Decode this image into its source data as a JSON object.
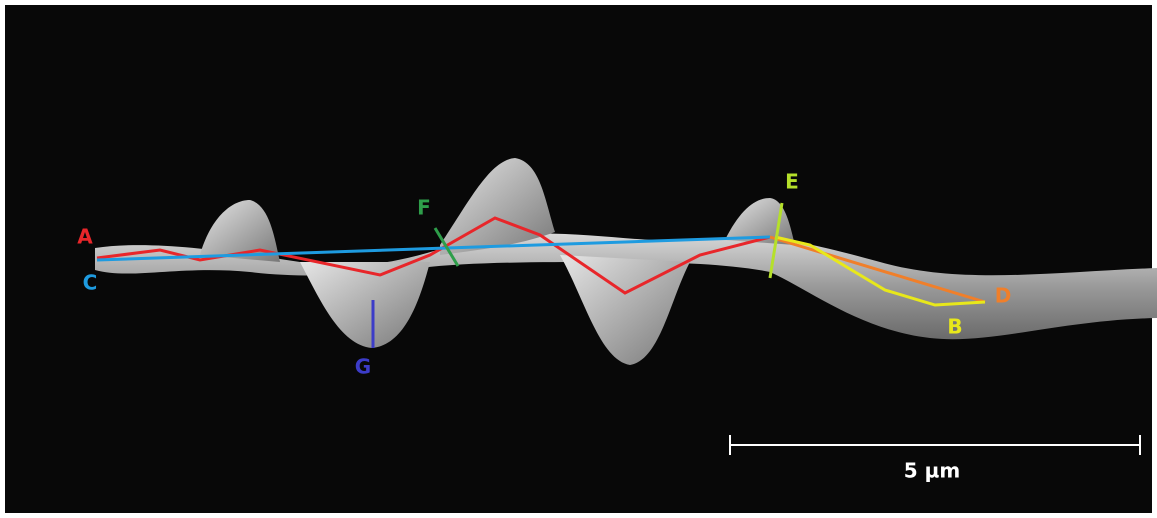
{
  "annotations": [
    {
      "label": "A"
    },
    {
      "label": "B"
    },
    {
      "label": "C"
    },
    {
      "label": "D"
    },
    {
      "label": "E"
    },
    {
      "label": "F"
    },
    {
      "label": "G"
    }
  ],
  "scale_bar": {
    "label": "5 µm"
  }
}
